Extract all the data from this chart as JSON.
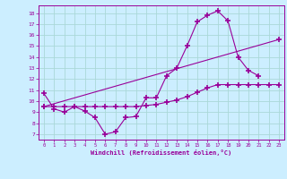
{
  "xlabel": "Windchill (Refroidissement éolien,°C)",
  "bg_color": "#cceeff",
  "grid_color": "#aad8d8",
  "line_color": "#990099",
  "xlim": [
    -0.5,
    23.5
  ],
  "ylim": [
    6.5,
    18.7
  ],
  "yticks": [
    7,
    8,
    9,
    10,
    11,
    12,
    13,
    14,
    15,
    16,
    17,
    18
  ],
  "xticks": [
    0,
    1,
    2,
    3,
    4,
    5,
    6,
    7,
    8,
    9,
    10,
    11,
    12,
    13,
    14,
    15,
    16,
    17,
    18,
    19,
    20,
    21,
    22,
    23
  ],
  "line1_x": [
    0,
    1,
    2,
    3,
    4,
    5,
    6,
    7,
    8,
    9,
    10,
    11,
    12,
    13,
    14,
    15,
    16,
    17,
    18,
    19,
    20,
    21
  ],
  "line1_y": [
    10.7,
    9.3,
    9.0,
    9.5,
    9.1,
    8.5,
    7.0,
    7.2,
    8.5,
    8.6,
    10.3,
    10.3,
    12.3,
    13.0,
    15.0,
    17.2,
    17.8,
    18.2,
    17.3,
    14.0,
    12.8,
    12.3
  ],
  "line2_x": [
    0,
    1,
    2,
    3,
    4,
    5,
    6,
    7,
    8,
    9,
    10,
    11,
    12,
    13,
    14,
    15,
    16,
    17,
    18,
    19,
    20,
    21,
    22,
    23
  ],
  "line2_y": [
    9.5,
    9.5,
    9.5,
    9.5,
    9.5,
    9.5,
    9.5,
    9.5,
    9.5,
    9.5,
    9.6,
    9.7,
    9.9,
    10.1,
    10.4,
    10.8,
    11.2,
    11.5,
    11.5,
    11.5,
    11.5,
    11.5,
    11.5,
    11.5
  ],
  "line3_x": [
    0,
    23
  ],
  "line3_y": [
    9.5,
    15.6
  ]
}
